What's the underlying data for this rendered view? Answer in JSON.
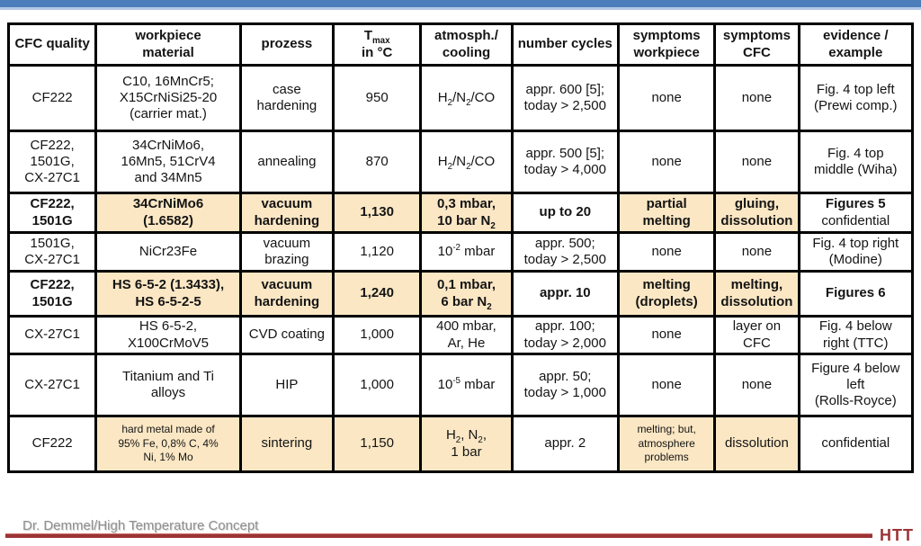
{
  "page": {
    "top_bar_color": "#4d7ebc",
    "highlight_tan": "#fbe7c4",
    "rule_red": "#9c3436",
    "footer_text": "Dr. Demmel/High Temperature Concept",
    "logo_text": "HTT"
  },
  "table": {
    "headers": [
      "CFC quality",
      "workpiece\nmaterial",
      "prozess",
      "T~max~\nin °C",
      "atmosph./\ncooling",
      "number cycles",
      "symptoms\nworkpiece",
      "symptoms\nCFC",
      "evidence /\nexample"
    ],
    "rows": [
      [
        {
          "text": "CF222"
        },
        {
          "text": "C10, 16MnCr5;\nX15CrNiSi25-20\n(carrier mat.)"
        },
        {
          "text": "case\nhardening"
        },
        {
          "text": "950"
        },
        {
          "text": "H~2~/N~2~/CO"
        },
        {
          "text": "appr. 600 [5];\ntoday > 2,500"
        },
        {
          "text": "none"
        },
        {
          "text": "none"
        },
        {
          "text": "Fig. 4 top left\n(Prewi comp.)"
        }
      ],
      [
        {
          "text": "CF222,\n1501G,\nCX-27C1"
        },
        {
          "text": "34CrNiMo6,\n16Mn5, 51CrV4\nand 34Mn5"
        },
        {
          "text": "annealing"
        },
        {
          "text": "870"
        },
        {
          "text": "H~2~/N~2~/CO"
        },
        {
          "text": "appr. 500 [5];\ntoday > 4,000"
        },
        {
          "text": "none"
        },
        {
          "text": "none"
        },
        {
          "text": "Fig. 4 top\nmiddle (Wiha)"
        }
      ],
      [
        {
          "text": "CF222,\n1501G",
          "bold": true
        },
        {
          "text": "34CrNiMo6\n(1.6582)",
          "bold": true,
          "tan": true
        },
        {
          "text": "vacuum\nhardening",
          "bold": true,
          "tan": true
        },
        {
          "text": "1,130",
          "bold": true,
          "tan": true
        },
        {
          "text": "0,3 mbar,\n10 bar N~2~",
          "bold": true,
          "tan": true
        },
        {
          "text": "up to 20",
          "bold": true
        },
        {
          "text": "partial\nmelting",
          "bold": true,
          "tan": true
        },
        {
          "text": "gluing,\ndissolution",
          "bold": true,
          "tan": true
        },
        {
          "text": "*Figures 5*\nconfidential"
        }
      ],
      [
        {
          "text": "1501G,\nCX-27C1"
        },
        {
          "text": "NiCr23Fe"
        },
        {
          "text": "vacuum\nbrazing"
        },
        {
          "text": "1,120"
        },
        {
          "text": "10^-2^ mbar"
        },
        {
          "text": "appr. 500;\ntoday > 2,500"
        },
        {
          "text": "none"
        },
        {
          "text": "none"
        },
        {
          "text": "Fig. 4 top right\n(Modine)"
        }
      ],
      [
        {
          "text": "CF222,\n1501G",
          "bold": true
        },
        {
          "text": "HS 6-5-2 (1.3433),\nHS 6-5-2-5",
          "bold": true,
          "tan": true
        },
        {
          "text": "vacuum\nhardening",
          "bold": true,
          "tan": true
        },
        {
          "text": "1,240",
          "bold": true,
          "tan": true
        },
        {
          "text": "0,1 mbar,\n6 bar N~2~",
          "bold": true,
          "tan": true
        },
        {
          "text": "appr. 10",
          "bold": true
        },
        {
          "text": "melting\n(droplets)",
          "bold": true,
          "tan": true
        },
        {
          "text": "melting,\ndissolution",
          "bold": true,
          "tan": true
        },
        {
          "text": "Figures 6",
          "bold": true
        }
      ],
      [
        {
          "text": "CX-27C1"
        },
        {
          "text": "HS 6-5-2,\nX100CrMoV5"
        },
        {
          "text": "CVD coating"
        },
        {
          "text": "1,000"
        },
        {
          "text": "400 mbar,\nAr, He"
        },
        {
          "text": "appr. 100;\ntoday > 2,000"
        },
        {
          "text": "none"
        },
        {
          "text": "layer on CFC"
        },
        {
          "text": "Fig. 4 below\nright (TTC)"
        }
      ],
      [
        {
          "text": "CX-27C1"
        },
        {
          "text": "Titanium and Ti\nalloys"
        },
        {
          "text": "HIP"
        },
        {
          "text": "1,000"
        },
        {
          "text": "10^-5^ mbar"
        },
        {
          "text": "appr. 50;\ntoday > 1,000"
        },
        {
          "text": "none"
        },
        {
          "text": "none"
        },
        {
          "text": "Figure 4 below\nleft\n(Rolls-Royce)"
        }
      ],
      [
        {
          "text": "CF222"
        },
        {
          "text": "hard metal made of\n95% Fe, 0,8% C, 4%\nNi, 1% Mo",
          "tan": true,
          "small": true
        },
        {
          "text": "sintering",
          "tan": true
        },
        {
          "text": "1,150",
          "tan": true
        },
        {
          "text": "H~2~, N~2~,\n1 bar",
          "tan": true
        },
        {
          "text": "appr. 2"
        },
        {
          "text": "melting; but,\natmosphere\nproblems",
          "tan": true,
          "small": true
        },
        {
          "text": "dissolution",
          "tan": true
        },
        {
          "text": "confidential"
        }
      ]
    ]
  }
}
